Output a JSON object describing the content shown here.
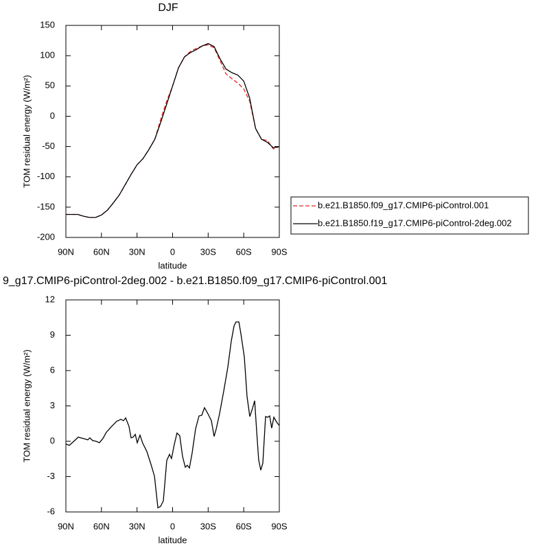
{
  "chart_data": [
    {
      "type": "line",
      "title": "DJF",
      "x_label": "latitude",
      "y_label": "TOM residual energy (W/m²)",
      "x": [
        90,
        85,
        80,
        75,
        70,
        65,
        60,
        55,
        50,
        45,
        40,
        35,
        30,
        25,
        20,
        15,
        10,
        5,
        0,
        -5,
        -10,
        -15,
        -20,
        -25,
        -30,
        -35,
        -40,
        -45,
        -50,
        -55,
        -60,
        -65,
        -70,
        -75,
        -80,
        -85,
        -90
      ],
      "series": [
        {
          "name": "b.e21.B1850.f09_g17.CMIP6-piControl.001",
          "color": "#e8261f",
          "linestyle": "dashed",
          "values": [
            -162,
            -162,
            -162,
            -165,
            -167,
            -167,
            -163,
            -155,
            -143,
            -130,
            -113,
            -96,
            -80,
            -70,
            -55,
            -38,
            -5,
            25,
            50,
            80,
            98,
            107,
            112,
            116,
            118,
            113,
            92,
            70,
            62,
            55,
            45,
            25,
            -20,
            -38,
            -40,
            -54,
            -50
          ]
        },
        {
          "name": "b.e21.B1850.f19_g17.CMIP6-piControl-2deg.002",
          "color": "#000000",
          "linestyle": "solid",
          "values": [
            -162,
            -162,
            -162,
            -165,
            -167,
            -167,
            -163,
            -155,
            -143,
            -130,
            -113,
            -96,
            -80,
            -70,
            -55,
            -38,
            -10,
            20,
            50,
            80,
            98,
            105,
            110,
            116,
            120,
            115,
            95,
            78,
            72,
            68,
            58,
            30,
            -20,
            -38,
            -43,
            -52,
            -50
          ]
        }
      ],
      "xlim": [
        90,
        -90
      ],
      "xticks": [
        {
          "value": 90,
          "label": "90N"
        },
        {
          "value": 60,
          "label": "60N"
        },
        {
          "value": 30,
          "label": "30N"
        },
        0,
        {
          "value": -30,
          "label": "30S"
        },
        {
          "value": -60,
          "label": "60S"
        },
        {
          "value": -90,
          "label": "90S"
        }
      ],
      "ylim": [
        -200,
        150
      ],
      "yticks": [
        150,
        100,
        50,
        0,
        -50,
        -100,
        -150,
        -200
      ],
      "legend": "right"
    },
    {
      "type": "line",
      "title": "9_g17.CMIP6-piControl-2deg.002 - b.e21.B1850.f09_g17.CMIP6-piControl.001",
      "x_label": "latitude",
      "y_label": "TOM residual energy (W/m²)",
      "x": [
        90,
        87.1,
        81.9,
        79.6,
        75.0,
        71.5,
        69.8,
        67.4,
        64.6,
        61.7,
        58.8,
        55.9,
        51.8,
        47.2,
        43.7,
        41.4,
        39.6,
        36.8,
        35.0,
        33.3,
        31.5,
        29.8,
        27.5,
        25.2,
        21.7,
        18.2,
        15.3,
        12.4,
        10.1,
        7.8,
        4.9,
        2.6,
        0.9,
        -1.4,
        -3.7,
        -6.0,
        -8.4,
        -10.7,
        -12.4,
        -14.2,
        -16.5,
        -19.4,
        -22.3,
        -24.6,
        -26.9,
        -29.8,
        -32.7,
        -35.0,
        -36.8,
        -39.7,
        -43.1,
        -46.6,
        -49.5,
        -51.8,
        -53.5,
        -55.9,
        -57.6,
        -60.5,
        -62.8,
        -65.1,
        -67.4,
        -69.2,
        -70.9,
        -72.6,
        -74.4,
        -76.1,
        -78.4,
        -80.2,
        -81.9,
        -83.6,
        -85.4,
        -87.7,
        -90
      ],
      "series": [
        {
          "color": "#000000",
          "linestyle": "solid",
          "values": [
            -0.23,
            -0.35,
            0.12,
            0.35,
            0.23,
            0.12,
            0.29,
            0.06,
            0,
            -0.12,
            0.23,
            0.76,
            1.22,
            1.69,
            1.86,
            1.75,
            1.98,
            1.28,
            0.29,
            0.35,
            0.58,
            -0.12,
            0.52,
            -0.17,
            -0.87,
            -1.98,
            -2.97,
            -5.65,
            -5.53,
            -5.07,
            -1.63,
            -1.11,
            -1.46,
            -0.29,
            0.7,
            0.47,
            -1.28,
            -2.21,
            -2.04,
            -2.27,
            -0.99,
            1.05,
            2.15,
            2.21,
            2.85,
            2.33,
            1.75,
            0.41,
            1.05,
            2.38,
            4.25,
            6.29,
            8.5,
            9.78,
            10.13,
            10.13,
            9.14,
            7.16,
            3.79,
            2.1,
            2.8,
            3.44,
            0.87,
            -1.57,
            -2.45,
            -1.86,
            2.1,
            2.04,
            2.15,
            1.11,
            2.04,
            1.63,
            1.34
          ]
        }
      ],
      "xlim": [
        90,
        -90
      ],
      "xticks": [
        {
          "value": 90,
          "label": "90N"
        },
        {
          "value": 60,
          "label": "60N"
        },
        {
          "value": 30,
          "label": "30N"
        },
        0,
        {
          "value": -30,
          "label": "30S"
        },
        {
          "value": -60,
          "label": "60S"
        },
        {
          "value": -90,
          "label": "90S"
        }
      ],
      "ylim": [
        -6,
        12
      ],
      "yticks": [
        12,
        9,
        6,
        3,
        0,
        -3,
        -6
      ]
    }
  ]
}
